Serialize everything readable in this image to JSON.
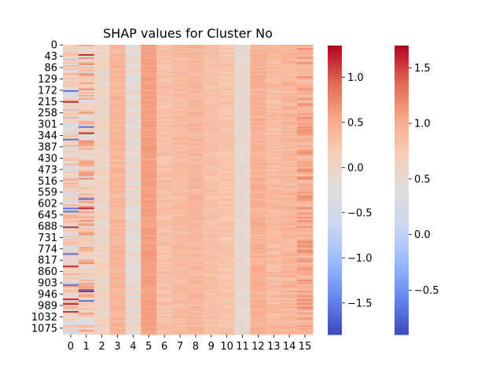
{
  "chart_data": {
    "type": "heatmap",
    "title": "SHAP values for Cluster No",
    "colormap": "coolwarm",
    "colormap_stops": [
      "#3b4cc0",
      "#6788ee",
      "#9abbff",
      "#c9d7f0",
      "#dddddd",
      "#f6cfb8",
      "#f7a889",
      "#e26952",
      "#b40426"
    ],
    "x_tick_labels": [
      "0",
      "1",
      "2",
      "3",
      "4",
      "5",
      "6",
      "7",
      "8",
      "9",
      "10",
      "11",
      "12",
      "13",
      "14",
      "15"
    ],
    "y_tick_labels": [
      "0",
      "43",
      "86",
      "129",
      "172",
      "215",
      "258",
      "301",
      "344",
      "387",
      "430",
      "473",
      "516",
      "559",
      "602",
      "645",
      "688",
      "731",
      "774",
      "817",
      "860",
      "903",
      "946",
      "989",
      "1032",
      "1075"
    ],
    "n_rows": 1100,
    "n_columns": 16,
    "column_typical_values": [
      0.0,
      0.2,
      0.02,
      0.4,
      -0.1,
      0.6,
      0.3,
      0.35,
      0.4,
      0.3,
      0.25,
      -0.1,
      0.45,
      0.35,
      0.4,
      0.5
    ],
    "vmin": -1.85,
    "vmax": 1.35,
    "colorbars": [
      {
        "ticks": [
          "1.0",
          "0.5",
          "0.0",
          "−0.5",
          "−1.0",
          "−1.5"
        ],
        "tick_values": [
          1.0,
          0.5,
          0.0,
          -0.5,
          -1.0,
          -1.5
        ],
        "min": -1.85,
        "max": 1.35
      },
      {
        "ticks": [
          "1.5",
          "1.0",
          "0.5",
          "0.0",
          "−0.5"
        ],
        "tick_values": [
          1.5,
          1.0,
          0.5,
          0.0,
          -0.5
        ],
        "min": -0.9,
        "max": 1.7
      }
    ]
  }
}
